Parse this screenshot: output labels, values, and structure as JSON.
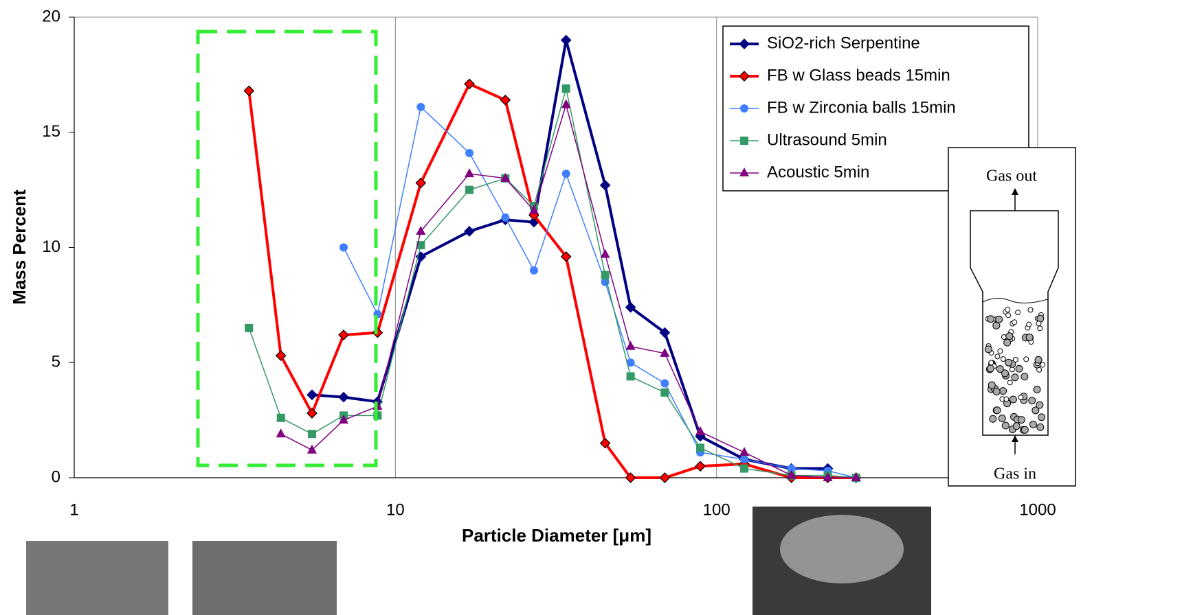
{
  "chart_data": {
    "type": "line",
    "x_label": "Particle Diameter [μm]",
    "y_label": "Mass Percent",
    "xscale": "log",
    "x": [
      3.5,
      4.4,
      5.5,
      6.9,
      8.8,
      12,
      17,
      22,
      27,
      34,
      45,
      54,
      69,
      89,
      122,
      171,
      222,
      272
    ],
    "series": [
      {
        "name": "SiO2-rich Serpentine",
        "color": "#000080",
        "marker": "diamond",
        "values": [
          null,
          null,
          3.6,
          3.5,
          3.3,
          9.6,
          10.7,
          11.2,
          11.1,
          19.0,
          12.7,
          7.4,
          6.3,
          1.8,
          0.8,
          0.4,
          0.4,
          null
        ]
      },
      {
        "name": "FB w Glass beads 15min",
        "color": "#ff0000",
        "marker": "diamond-outline",
        "values": [
          16.8,
          5.3,
          2.8,
          6.2,
          6.3,
          12.8,
          17.1,
          16.4,
          11.4,
          9.6,
          1.5,
          0,
          0,
          0.5,
          0.6,
          0,
          0,
          0
        ]
      },
      {
        "name": "FB w Zirconia balls 15min",
        "color": "#3f7fff",
        "marker": "circle",
        "values": [
          null,
          null,
          null,
          10.0,
          7.1,
          16.1,
          14.1,
          11.3,
          9.0,
          13.2,
          8.5,
          5.0,
          4.1,
          1.1,
          0.8,
          0.4,
          0.3,
          0
        ]
      },
      {
        "name": "Ultrasound 5min",
        "color": "#339966",
        "marker": "square",
        "values": [
          6.5,
          2.6,
          1.9,
          2.7,
          2.7,
          10.1,
          12.5,
          13.0,
          11.8,
          16.9,
          8.8,
          4.4,
          3.7,
          1.3,
          0.4,
          0.1,
          0.1,
          0
        ]
      },
      {
        "name": "Acoustic 5min",
        "color": "#800080",
        "marker": "triangle",
        "values": [
          null,
          1.9,
          1.2,
          2.5,
          3.1,
          10.7,
          13.2,
          13.0,
          11.6,
          16.2,
          9.7,
          5.7,
          5.4,
          2.0,
          1.1,
          0.1,
          0,
          0
        ]
      }
    ],
    "xlim": [
      1,
      1000
    ],
    "xticks": [
      1,
      10,
      100,
      1000
    ],
    "ylim": [
      0,
      20
    ],
    "yticks": [
      0,
      5,
      10,
      15,
      20
    ],
    "grid": "x",
    "legend": "upper right"
  },
  "inset": {
    "top_label": "Gas out",
    "bottom_label": "Gas in"
  }
}
